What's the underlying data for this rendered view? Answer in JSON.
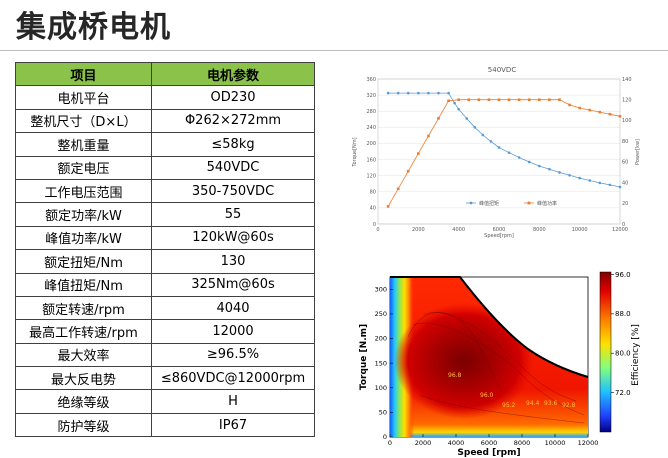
{
  "title": "集成桥电机",
  "table": {
    "headers": [
      "项目",
      "电机参数"
    ],
    "rows": [
      [
        "电机平台",
        "OD230"
      ],
      [
        "整机尺寸（D×L）",
        "Φ262×272mm"
      ],
      [
        "整机重量",
        "≤58kg"
      ],
      [
        "额定电压",
        "540VDC"
      ],
      [
        "工作电压范围",
        "350-750VDC"
      ],
      [
        "额定功率/kW",
        "55"
      ],
      [
        "峰值功率/kW",
        "120kW@60s"
      ],
      [
        "额定扭矩/Nm",
        "130"
      ],
      [
        "峰值扭矩/Nm",
        "325Nm@60s"
      ],
      [
        "额定转速/rpm",
        "4040"
      ],
      [
        "最高工作转速/rpm",
        "12000"
      ],
      [
        "最大效率",
        "≥96.5%"
      ],
      [
        "最大反电势",
        "≤860VDC@12000rpm"
      ],
      [
        "绝缘等级",
        "H"
      ],
      [
        "防护等级",
        "IP67"
      ]
    ]
  },
  "chart_data": [
    {
      "type": "line",
      "title": "540VDC",
      "xlabel": "Speed[rpm]",
      "ylabel": "Torque[Nm]",
      "y2label": "Power[kw]",
      "xlim": [
        0,
        12000
      ],
      "ylim": [
        0,
        360
      ],
      "y2lim": [
        0,
        140
      ],
      "x_ticks": [
        "0",
        "2000",
        "4000",
        "6000",
        "8000",
        "10000",
        "12000"
      ],
      "y_ticks": [
        "0",
        "40",
        "80",
        "120",
        "160",
        "200",
        "240",
        "280",
        "320",
        "360"
      ],
      "y2_ticks": [
        "0",
        "20",
        "40",
        "60",
        "80",
        "100",
        "120",
        "140"
      ],
      "legend_position": "bottom",
      "series": [
        {
          "name": "峰值扭矩",
          "axis": "left",
          "color": "#5b9bd5",
          "x": [
            500,
            1000,
            1500,
            2000,
            2500,
            3000,
            3500,
            3800,
            4000,
            4400,
            4800,
            5200,
            5600,
            6000,
            6500,
            7000,
            7500,
            8000,
            8500,
            9000,
            9500,
            10000,
            10500,
            11000,
            11500,
            12000
          ],
          "y": [
            325,
            325,
            325,
            325,
            325,
            325,
            325,
            300,
            285,
            262,
            240,
            221,
            205,
            190,
            177,
            165,
            154,
            144,
            136,
            128,
            121,
            114,
            108,
            102,
            97,
            92
          ]
        },
        {
          "name": "峰值功率",
          "axis": "right",
          "color": "#ed7d31",
          "x": [
            500,
            1000,
            1500,
            2000,
            2500,
            3000,
            3500,
            4000,
            4500,
            5000,
            5500,
            6000,
            6500,
            7000,
            7500,
            8000,
            8500,
            9000,
            9500,
            10000,
            10500,
            11000,
            11500,
            12000
          ],
          "y": [
            17,
            34,
            51,
            68,
            85,
            102,
            119,
            120,
            120,
            120,
            120,
            120,
            120,
            120,
            120,
            120,
            120,
            120,
            115,
            112,
            110,
            108,
            106,
            104
          ]
        }
      ]
    },
    {
      "type": "heatmap",
      "xlabel": "Speed [rpm]",
      "ylabel": "Torque [N.m]",
      "colorbar_label": "Efficiency [%]",
      "xlim": [
        0,
        12000
      ],
      "ylim": [
        0,
        325
      ],
      "x_ticks": [
        "0",
        "2000",
        "4000",
        "6000",
        "8000",
        "10000",
        "12000"
      ],
      "y_ticks": [
        "0",
        "50",
        "100",
        "150",
        "200",
        "250",
        "300"
      ],
      "colorbar_ticks": [
        "96.0",
        "88.0",
        "80.0",
        "72.0"
      ],
      "contour_labels": [
        "96.8",
        "96.0",
        "95.2",
        "94.4",
        "93.6",
        "92.8"
      ]
    }
  ]
}
